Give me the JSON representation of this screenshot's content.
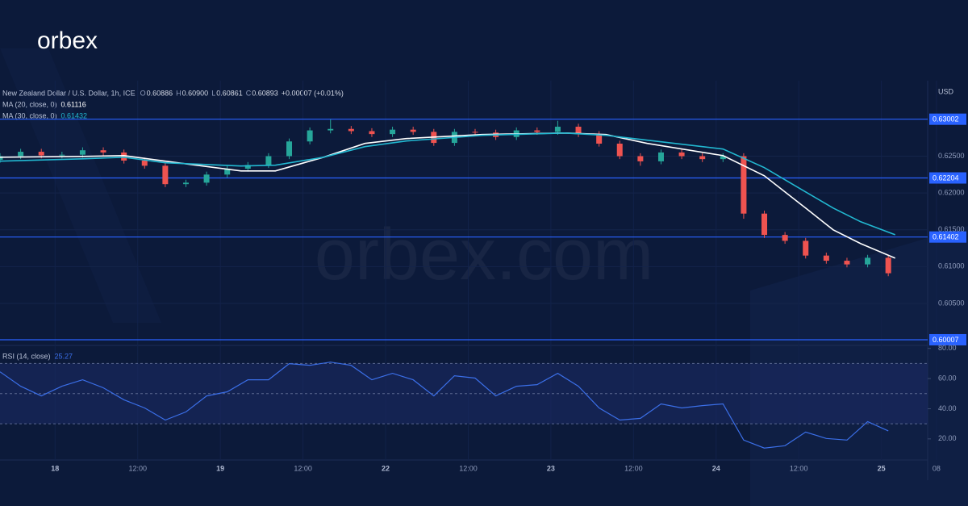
{
  "logo": "orbex",
  "watermark": "orbex.com",
  "chart_data": [
    {
      "type": "candlestick",
      "title": "New Zealand Dollar / U.S. Dollar, 1h, ICE",
      "ohlc_legend": [
        {
          "label": "O",
          "value": "0.60886"
        },
        {
          "label": "H",
          "value": "0.60900"
        },
        {
          "label": "L",
          "value": "0.60861"
        },
        {
          "label": "C",
          "value": "0.60893"
        }
      ],
      "change_label": "+0.00007 (+0.01%)",
      "y_unit": "USD",
      "up_color": "#26a69a",
      "down_color": "#ef5350",
      "x": [
        -8,
        -5,
        -2,
        1,
        4,
        7,
        10,
        13,
        16,
        19,
        22,
        25,
        28,
        31,
        34,
        37,
        40,
        43,
        46,
        49,
        52,
        55,
        58,
        61,
        64,
        67,
        70,
        73,
        76,
        79,
        82,
        85,
        88,
        91,
        94,
        97,
        100,
        103,
        106,
        109,
        112,
        115,
        118,
        121
      ],
      "open": [
        0.6245,
        0.625,
        0.6256,
        0.6251,
        0.6252,
        0.6258,
        0.6255,
        0.6244,
        0.6237,
        0.6212,
        0.6214,
        0.6225,
        0.6233,
        0.6238,
        0.625,
        0.627,
        0.6285,
        0.6287,
        0.6284,
        0.628,
        0.6286,
        0.6283,
        0.6268,
        0.6283,
        0.6282,
        0.6276,
        0.6285,
        0.6283,
        0.629,
        0.628,
        0.6267,
        0.625,
        0.6243,
        0.6255,
        0.625,
        0.6246,
        0.625,
        0.6172,
        0.6143,
        0.6135,
        0.6115,
        0.6108,
        0.6103,
        0.6112
      ],
      "high": [
        0.6254,
        0.626,
        0.626,
        0.6256,
        0.6262,
        0.6262,
        0.6259,
        0.6248,
        0.6241,
        0.6218,
        0.6229,
        0.6237,
        0.6242,
        0.6254,
        0.6274,
        0.6289,
        0.63,
        0.6291,
        0.6288,
        0.629,
        0.629,
        0.6287,
        0.6287,
        0.6287,
        0.6286,
        0.6289,
        0.6289,
        0.6298,
        0.6294,
        0.6284,
        0.6271,
        0.6254,
        0.6259,
        0.6259,
        0.6254,
        0.6254,
        0.6254,
        0.6176,
        0.6147,
        0.6139,
        0.6119,
        0.6112,
        0.6116,
        0.6116
      ],
      "low": [
        0.6241,
        0.6246,
        0.6247,
        0.6247,
        0.6248,
        0.6251,
        0.624,
        0.6233,
        0.6208,
        0.6208,
        0.621,
        0.6221,
        0.6229,
        0.6234,
        0.6246,
        0.6266,
        0.6281,
        0.628,
        0.6276,
        0.6276,
        0.6279,
        0.6264,
        0.6264,
        0.6278,
        0.6272,
        0.6272,
        0.6279,
        0.6279,
        0.6276,
        0.6263,
        0.6246,
        0.6237,
        0.6239,
        0.6246,
        0.6242,
        0.6242,
        0.6165,
        0.6139,
        0.6131,
        0.6111,
        0.6104,
        0.6099,
        0.6099,
        0.6087
      ],
      "close": [
        0.625,
        0.6256,
        0.6251,
        0.6252,
        0.6258,
        0.6255,
        0.6244,
        0.6237,
        0.6212,
        0.6214,
        0.6225,
        0.6233,
        0.6238,
        0.625,
        0.627,
        0.6285,
        0.6287,
        0.6284,
        0.628,
        0.6286,
        0.6283,
        0.6268,
        0.6283,
        0.6282,
        0.6276,
        0.6285,
        0.6283,
        0.629,
        0.628,
        0.6267,
        0.625,
        0.6243,
        0.6255,
        0.625,
        0.6246,
        0.625,
        0.6172,
        0.6143,
        0.6135,
        0.6115,
        0.6108,
        0.6103,
        0.6112,
        0.6091
      ],
      "series": [
        {
          "name": "MA (20, close, 0)",
          "last_label": "0.61116",
          "color": "#ffffff",
          "x": [
            -8,
            4,
            10,
            16,
            27,
            32,
            39,
            45,
            51,
            62,
            74,
            80,
            86,
            97,
            103,
            109,
            113,
            117,
            122
          ],
          "values": [
            0.62486,
            0.62497,
            0.62508,
            0.62432,
            0.623,
            0.623,
            0.62486,
            0.62673,
            0.62739,
            0.62794,
            0.62815,
            0.62794,
            0.62673,
            0.62508,
            0.62234,
            0.61795,
            0.61499,
            0.61312,
            0.61115
          ]
        },
        {
          "name": "MA (30, close, 0)",
          "last_label": "0.61432",
          "color": "#22b8d1",
          "x": [
            -8,
            4,
            10,
            16,
            27,
            32,
            39,
            45,
            51,
            62,
            74,
            80,
            86,
            97,
            103,
            109,
            113,
            117,
            122
          ],
          "values": [
            0.62432,
            0.62464,
            0.62486,
            0.6241,
            0.62366,
            0.62377,
            0.62486,
            0.62629,
            0.62706,
            0.62783,
            0.62815,
            0.62783,
            0.62717,
            0.62596,
            0.62344,
            0.62015,
            0.61795,
            0.61609,
            0.61433
          ]
        }
      ],
      "levels": [
        0.63002,
        0.62204,
        0.61402,
        0.60007
      ],
      "level_color": "#2962ff",
      "xlim": [
        -8,
        130
      ],
      "xticks": [
        {
          "value": 0,
          "label": "18"
        },
        {
          "value": 12,
          "label": "12:00"
        },
        {
          "value": 24,
          "label": "19"
        },
        {
          "value": 36,
          "label": "12:00"
        },
        {
          "value": 48,
          "label": "22"
        },
        {
          "value": 60,
          "label": "12:00"
        },
        {
          "value": 72,
          "label": "23"
        },
        {
          "value": 84,
          "label": "12:00"
        },
        {
          "value": 96,
          "label": "24"
        },
        {
          "value": 108,
          "label": "12:00"
        },
        {
          "value": 120,
          "label": "25"
        },
        {
          "value": 128,
          "label": "08"
        }
      ],
      "ylim": [
        0.5993,
        0.6347
      ],
      "yticks": [
        {
          "value": 0.625,
          "label": "0.62500"
        },
        {
          "value": 0.62,
          "label": "0.62000"
        },
        {
          "value": 0.615,
          "label": "0.61500"
        },
        {
          "value": 0.61,
          "label": "0.61000"
        },
        {
          "value": 0.605,
          "label": "0.60500"
        }
      ]
    },
    {
      "type": "line",
      "title": "RSI (14, close)",
      "last_label": "25.27",
      "color": "#3b6fe8",
      "x": [
        -8,
        -5,
        -2,
        1,
        4,
        7,
        10,
        13,
        16,
        19,
        22,
        25,
        28,
        31,
        34,
        37,
        40,
        43,
        46,
        49,
        52,
        55,
        58,
        61,
        64,
        67,
        70,
        73,
        76,
        79,
        82,
        85,
        88,
        91,
        94,
        97,
        100,
        103,
        106,
        109,
        112,
        115,
        118,
        121
      ],
      "values": [
        64.5,
        54.9,
        48.5,
        54.9,
        59.2,
        53.9,
        45.9,
        40.5,
        32.5,
        37.9,
        48.5,
        51.2,
        59.2,
        59.2,
        69.9,
        68.8,
        70.9,
        68.8,
        59.2,
        63.5,
        59.2,
        48.5,
        61.9,
        60.3,
        48.5,
        54.9,
        56.0,
        63.5,
        54.9,
        40.5,
        32.5,
        33.6,
        43.2,
        40.5,
        42.1,
        43.2,
        19.2,
        13.9,
        15.5,
        24.5,
        20.3,
        19.2,
        31.5,
        25.3
      ],
      "band": [
        30,
        70
      ],
      "midline": 50,
      "xlim": [
        -8,
        130
      ],
      "ylim": [
        6,
        82
      ],
      "yticks": [
        {
          "value": 80,
          "label": "80.00"
        },
        {
          "value": 60,
          "label": "60.00"
        },
        {
          "value": 40,
          "label": "40.00"
        },
        {
          "value": 20,
          "label": "20.00"
        }
      ]
    }
  ]
}
